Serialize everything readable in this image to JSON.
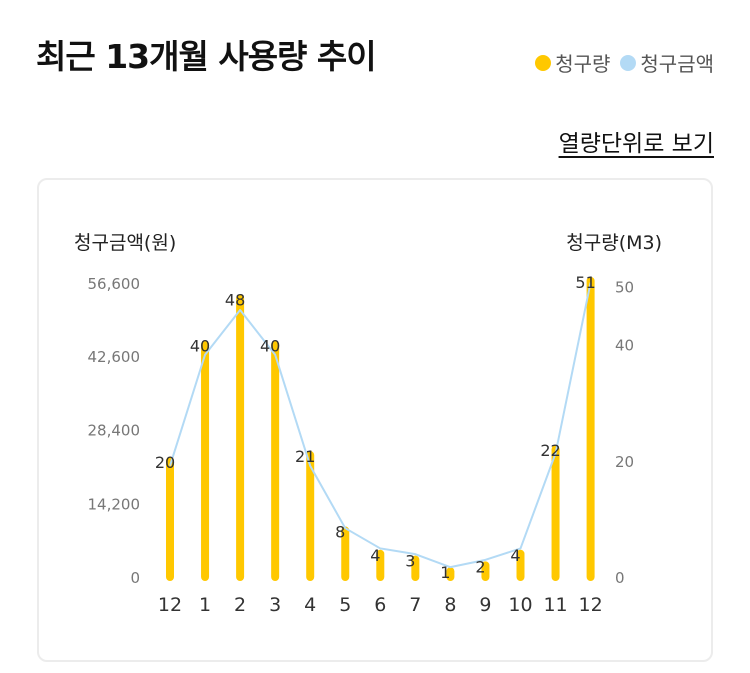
{
  "header": {
    "title": "최근 13개월 사용량 추이",
    "unit_link_label": "열량단위로 보기"
  },
  "legend": [
    {
      "name": "청구량",
      "color": "#ffc800"
    },
    {
      "name": "청구금액",
      "color": "#b3daf5"
    }
  ],
  "chart_data": {
    "type": "bar",
    "categories": [
      "12",
      "1",
      "2",
      "3",
      "4",
      "5",
      "6",
      "7",
      "8",
      "9",
      "10",
      "11",
      "12"
    ],
    "series": [
      {
        "name": "청구량",
        "kind": "bar",
        "axis": "right",
        "values": [
          20,
          40,
          48,
          40,
          21,
          8,
          4,
          3,
          1,
          2,
          4,
          22,
          51
        ],
        "color": "#ffc800"
      },
      {
        "name": "청구금액",
        "kind": "line",
        "axis": "left",
        "values": [
          21400,
          42800,
          51400,
          42800,
          21400,
          9400,
          5500,
          4400,
          1900,
          3300,
          5500,
          23800,
          56700
        ],
        "color": "#b3daf5"
      }
    ],
    "y_left": {
      "label": "청구금액(원)",
      "ticks": [
        "0",
        "14,200",
        "28,400",
        "42,600",
        "56,600"
      ],
      "tick_values": [
        0,
        14200,
        28400,
        42600,
        56600
      ],
      "range": [
        0,
        56800
      ]
    },
    "y_right": {
      "label": "청구량(M3)",
      "ticks": [
        "0",
        "20",
        "40",
        "50"
      ],
      "tick_values": [
        0,
        20,
        40,
        50
      ],
      "range": [
        0,
        50.8
      ]
    },
    "grid": false,
    "legend_position": "top-right"
  }
}
